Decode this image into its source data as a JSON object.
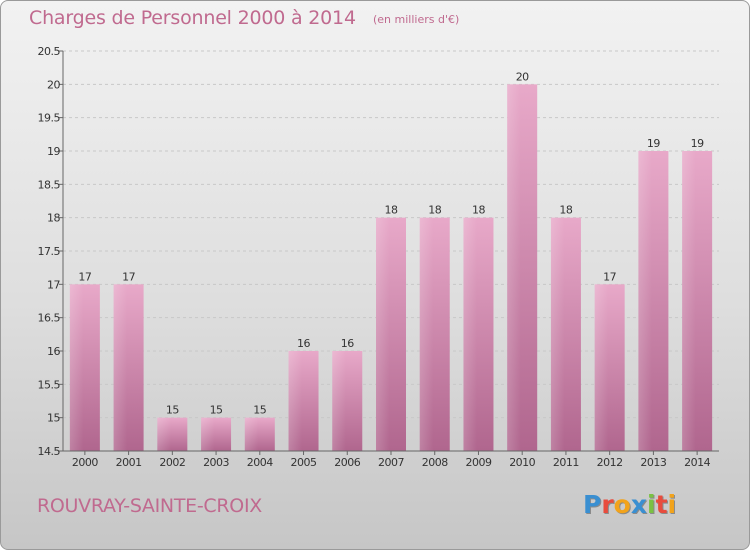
{
  "header": {
    "title": "Charges de Personnel 2000 à 2014",
    "unit": "(en milliers d'€)"
  },
  "footer": {
    "commune": "ROUVRAY-SAINTE-CROIX",
    "logo": "Proxiti",
    "logo_colors": [
      "#3a8fd1",
      "#e84c3d",
      "#f2a31b",
      "#3a8fd1",
      "#7ac143",
      "#e84c3d",
      "#f2a31b"
    ]
  },
  "chart_data": {
    "type": "bar",
    "categories": [
      "2000",
      "2001",
      "2002",
      "2003",
      "2004",
      "2005",
      "2006",
      "2007",
      "2008",
      "2009",
      "2010",
      "2011",
      "2012",
      "2013",
      "2014"
    ],
    "values": [
      17,
      17,
      15,
      15,
      15,
      16,
      16,
      18,
      18,
      18,
      20,
      18,
      17,
      19,
      19
    ],
    "data_labels": [
      "17",
      "17",
      "15",
      "15",
      "15",
      "16",
      "16",
      "18",
      "18",
      "18",
      "20",
      "18",
      "17",
      "19",
      "19"
    ],
    "yticks": [
      "14.5",
      "15",
      "15.5",
      "16",
      "16.5",
      "17",
      "17.5",
      "18",
      "18.5",
      "19",
      "19.5",
      "20",
      "20.5"
    ],
    "ylim": [
      14.5,
      20.5
    ],
    "grid": "horizontal dashed",
    "bar_color": "#d77aa6"
  }
}
